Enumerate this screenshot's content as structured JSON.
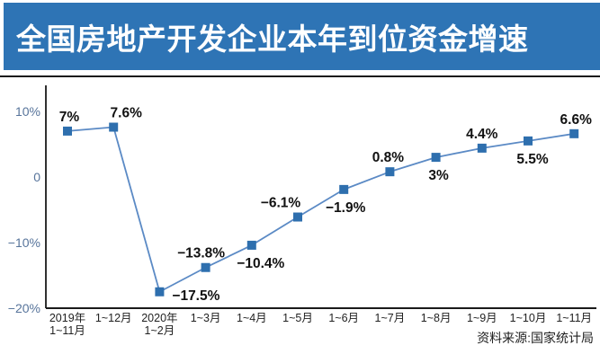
{
  "header": {
    "title": "全国房地产开发企业本年到位资金增速"
  },
  "source_note": "资料来源:国家统计局",
  "colors": {
    "banner_blue": "#2e74b5",
    "line_blue": "#5b8ac5",
    "marker_blue": "#2e6fae",
    "axis_black": "#1a1a1a",
    "tick_label_gray_blue": "#57749b",
    "x_label_dark": "#222222",
    "data_label_black": "#111111"
  },
  "chart_data": {
    "type": "line",
    "title": "全国房地产开发企业本年到位资金增速",
    "categories": [
      [
        "2019年",
        "1~11月"
      ],
      [
        "1~12月"
      ],
      [
        "2020年",
        "1~2月"
      ],
      [
        "1~3月"
      ],
      [
        "1~4月"
      ],
      [
        "1~5月"
      ],
      [
        "1~6月"
      ],
      [
        "1~7月"
      ],
      [
        "1~8月"
      ],
      [
        "1~9月"
      ],
      [
        "1~10月"
      ],
      [
        "1~11月"
      ]
    ],
    "values": [
      7,
      7.6,
      -17.5,
      -13.8,
      -10.4,
      -6.1,
      -1.9,
      0.8,
      3,
      4.4,
      5.5,
      6.6
    ],
    "data_labels": [
      "7%",
      "7.6%",
      "−17.5%",
      "−13.8%",
      "−10.4%",
      "−6.1%",
      "−1.9%",
      "0.8%",
      "3%",
      "4.4%",
      "5.5%",
      "6.6%"
    ],
    "y_ticks": [
      {
        "value": 10,
        "label": "10%"
      },
      {
        "value": 0,
        "label": "0"
      },
      {
        "value": -10,
        "label": "−10%"
      },
      {
        "value": -20,
        "label": "−20%"
      }
    ],
    "ylim": [
      -20,
      12
    ],
    "xlabel": "",
    "ylabel": "",
    "grid": false,
    "legend": null,
    "marker_shape": "square",
    "label_placement": [
      "above",
      "above",
      "right",
      "above",
      "below",
      "above",
      "below",
      "above",
      "below",
      "above",
      "below",
      "above"
    ],
    "label_dx": [
      2,
      14,
      0,
      -5,
      10,
      -19,
      2,
      -2,
      3,
      0,
      5,
      2
    ]
  }
}
